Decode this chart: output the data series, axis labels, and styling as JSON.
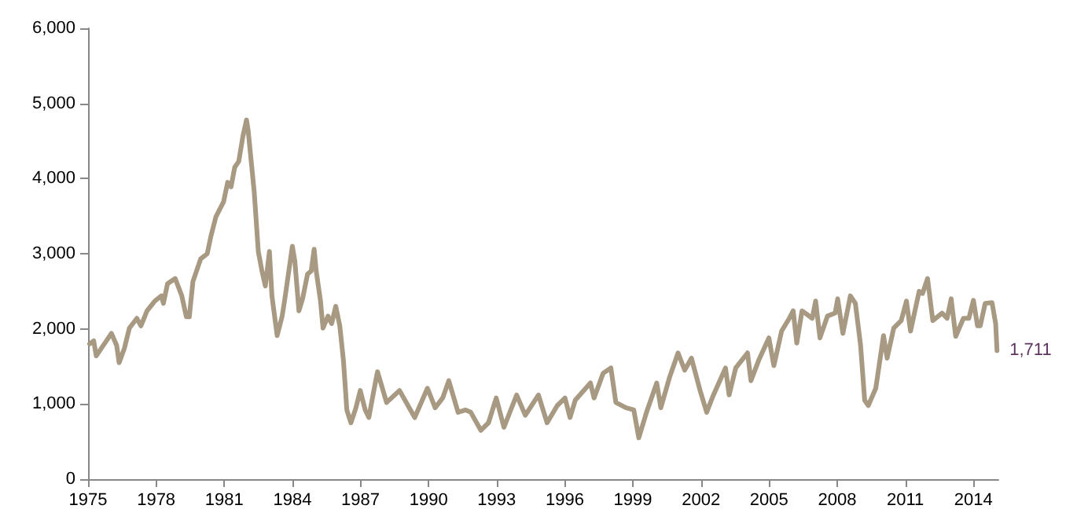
{
  "chart_data": {
    "type": "line",
    "x": [
      1975.07,
      1975.25,
      1975.36,
      1976.03,
      1976.26,
      1976.37,
      1976.6,
      1976.82,
      1977.15,
      1977.33,
      1977.6,
      1977.94,
      1978.23,
      1978.32,
      1978.5,
      1978.84,
      1979.13,
      1979.33,
      1979.46,
      1979.62,
      1979.96,
      1980.25,
      1980.41,
      1980.63,
      1980.97,
      1981.15,
      1981.3,
      1981.46,
      1981.64,
      1981.82,
      1981.98,
      1982.05,
      1982.32,
      1982.5,
      1982.66,
      1982.81,
      1982.99,
      1983.1,
      1983.33,
      1983.55,
      1983.67,
      1984.0,
      1984.11,
      1984.29,
      1984.45,
      1984.67,
      1984.83,
      1984.96,
      1985.05,
      1985.24,
      1985.35,
      1985.57,
      1985.73,
      1985.91,
      1986.09,
      1986.25,
      1986.4,
      1986.58,
      1986.8,
      1986.99,
      1987.21,
      1987.37,
      1987.59,
      1987.75,
      1988.15,
      1988.72,
      1989.39,
      1989.95,
      1990.29,
      1990.62,
      1990.89,
      1991.3,
      1991.63,
      1991.86,
      1992.3,
      1992.64,
      1992.98,
      1993.32,
      1993.88,
      1994.26,
      1994.84,
      1995.22,
      1995.67,
      1996.01,
      1996.23,
      1996.46,
      1997.13,
      1997.29,
      1997.69,
      1998.03,
      1998.25,
      1998.7,
      1999.04,
      1999.26,
      1999.6,
      2000.05,
      2000.23,
      2000.61,
      2000.99,
      2001.28,
      2001.58,
      2001.96,
      2002.25,
      2002.52,
      2003.08,
      2003.24,
      2003.53,
      2004.05,
      2004.2,
      2004.54,
      2004.99,
      2005.21,
      2005.55,
      2005.89,
      2006.06,
      2006.22,
      2006.45,
      2006.9,
      2007.05,
      2007.24,
      2007.57,
      2007.91,
      2008.02,
      2008.25,
      2008.58,
      2008.8,
      2009.03,
      2009.21,
      2009.37,
      2009.7,
      2010.04,
      2010.2,
      2010.49,
      2010.82,
      2011.05,
      2011.23,
      2011.61,
      2011.76,
      2011.98,
      2012.21,
      2012.62,
      2012.84,
      2013.02,
      2013.22,
      2013.56,
      2013.8,
      2014.0,
      2014.18,
      2014.3,
      2014.52,
      2014.82,
      2014.98,
      2015.04
    ],
    "series": [
      {
        "color": "#a89a82",
        "values": [
          1800,
          1840,
          1640,
          1940,
          1780,
          1550,
          1740,
          2010,
          2140,
          2040,
          2240,
          2370,
          2440,
          2340,
          2600,
          2670,
          2440,
          2160,
          2160,
          2630,
          2930,
          3000,
          3230,
          3490,
          3690,
          3950,
          3890,
          4150,
          4230,
          4560,
          4780,
          4650,
          3820,
          3030,
          2770,
          2570,
          3030,
          2440,
          1910,
          2170,
          2400,
          3100,
          2900,
          2240,
          2400,
          2730,
          2770,
          3060,
          2770,
          2370,
          2010,
          2170,
          2070,
          2300,
          2040,
          1580,
          920,
          750,
          950,
          1180,
          920,
          820,
          1180,
          1430,
          1020,
          1180,
          820,
          1210,
          950,
          1080,
          1310,
          890,
          920,
          890,
          650,
          750,
          1080,
          690,
          1120,
          850,
          1120,
          750,
          980,
          1080,
          820,
          1050,
          1280,
          1080,
          1410,
          1480,
          1020,
          950,
          920,
          550,
          890,
          1280,
          950,
          1350,
          1680,
          1450,
          1610,
          1180,
          890,
          1100,
          1480,
          1120,
          1480,
          1680,
          1310,
          1580,
          1880,
          1510,
          1970,
          2140,
          2240,
          1810,
          2240,
          2140,
          2370,
          1880,
          2170,
          2210,
          2400,
          1940,
          2440,
          2340,
          1780,
          1050,
          980,
          1210,
          1910,
          1610,
          2010,
          2110,
          2370,
          1970,
          2500,
          2470,
          2670,
          2110,
          2210,
          2140,
          2400,
          1900,
          2140,
          2140,
          2380,
          2040,
          2040,
          2340,
          2350,
          2070,
          1711
        ]
      }
    ],
    "xlim": [
      1975,
      2015.1
    ],
    "xticks": [
      1975,
      1978,
      1981,
      1984,
      1987,
      1990,
      1993,
      1996,
      1999,
      2002,
      2005,
      2008,
      2011,
      2014
    ],
    "ylim": [
      0,
      6000
    ],
    "yticks": [
      {
        "value": 0,
        "label": "0"
      },
      {
        "value": 1000,
        "label": "1,000"
      },
      {
        "value": 2000,
        "label": "2,000"
      },
      {
        "value": 3000,
        "label": "3,000"
      },
      {
        "value": 4000,
        "label": "4,000"
      },
      {
        "value": 5000,
        "label": "5,000"
      },
      {
        "value": 6000,
        "label": "6,000"
      }
    ],
    "annotations": [
      {
        "text": "1,711",
        "x": 2015.04,
        "y": 1711
      }
    ],
    "grid": false,
    "marker": "none",
    "line_style": "solid"
  }
}
